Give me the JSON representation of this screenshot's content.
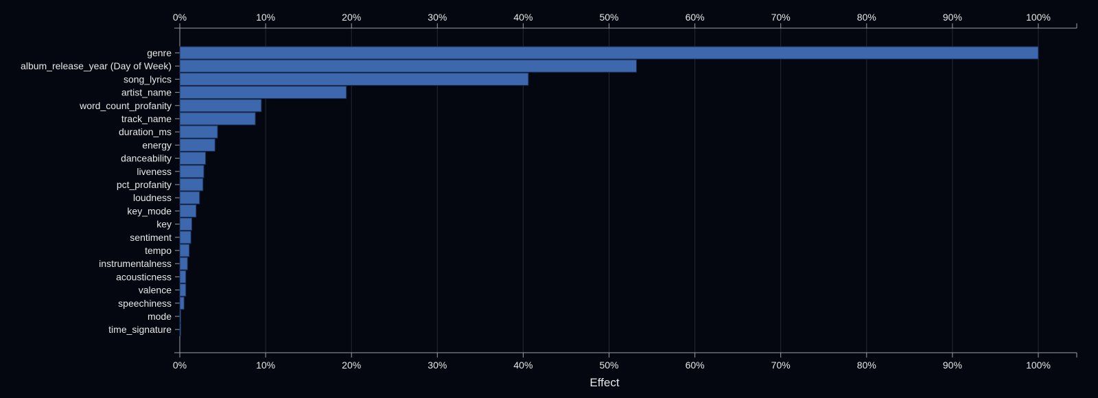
{
  "chart_data": {
    "type": "bar",
    "orientation": "horizontal",
    "xlabel": "Effect",
    "xlim": [
      0,
      1.05
    ],
    "x_ticks": [
      0,
      0.1,
      0.2,
      0.3,
      0.4,
      0.5,
      0.6,
      0.7,
      0.8,
      0.9,
      1.0
    ],
    "x_tick_labels": [
      "0%",
      "10%",
      "20%",
      "30%",
      "40%",
      "50%",
      "60%",
      "70%",
      "80%",
      "90%",
      "100%"
    ],
    "grid": "vertical",
    "categories": [
      "genre",
      "album_release_year (Day of Week)",
      "song_lyrics",
      "artist_name",
      "word_count_profanity",
      "track_name",
      "duration_ms",
      "energy",
      "danceability",
      "liveness",
      "pct_profanity",
      "loudness",
      "key_mode",
      "key",
      "sentiment",
      "tempo",
      "instrumentalness",
      "acousticness",
      "valence",
      "speechiness",
      "mode",
      "time_signature"
    ],
    "values": [
      1.0,
      0.532,
      0.406,
      0.194,
      0.095,
      0.088,
      0.044,
      0.041,
      0.03,
      0.028,
      0.027,
      0.023,
      0.019,
      0.014,
      0.013,
      0.011,
      0.009,
      0.007,
      0.007,
      0.005,
      0.001,
      0.001
    ]
  },
  "colors": {
    "background": "#04070f",
    "bar": "#3d68ad",
    "bar_stroke": "#1a2f55",
    "axis": "#9aa0ab",
    "grid": "#262a35",
    "text": "#e8e8ea"
  }
}
